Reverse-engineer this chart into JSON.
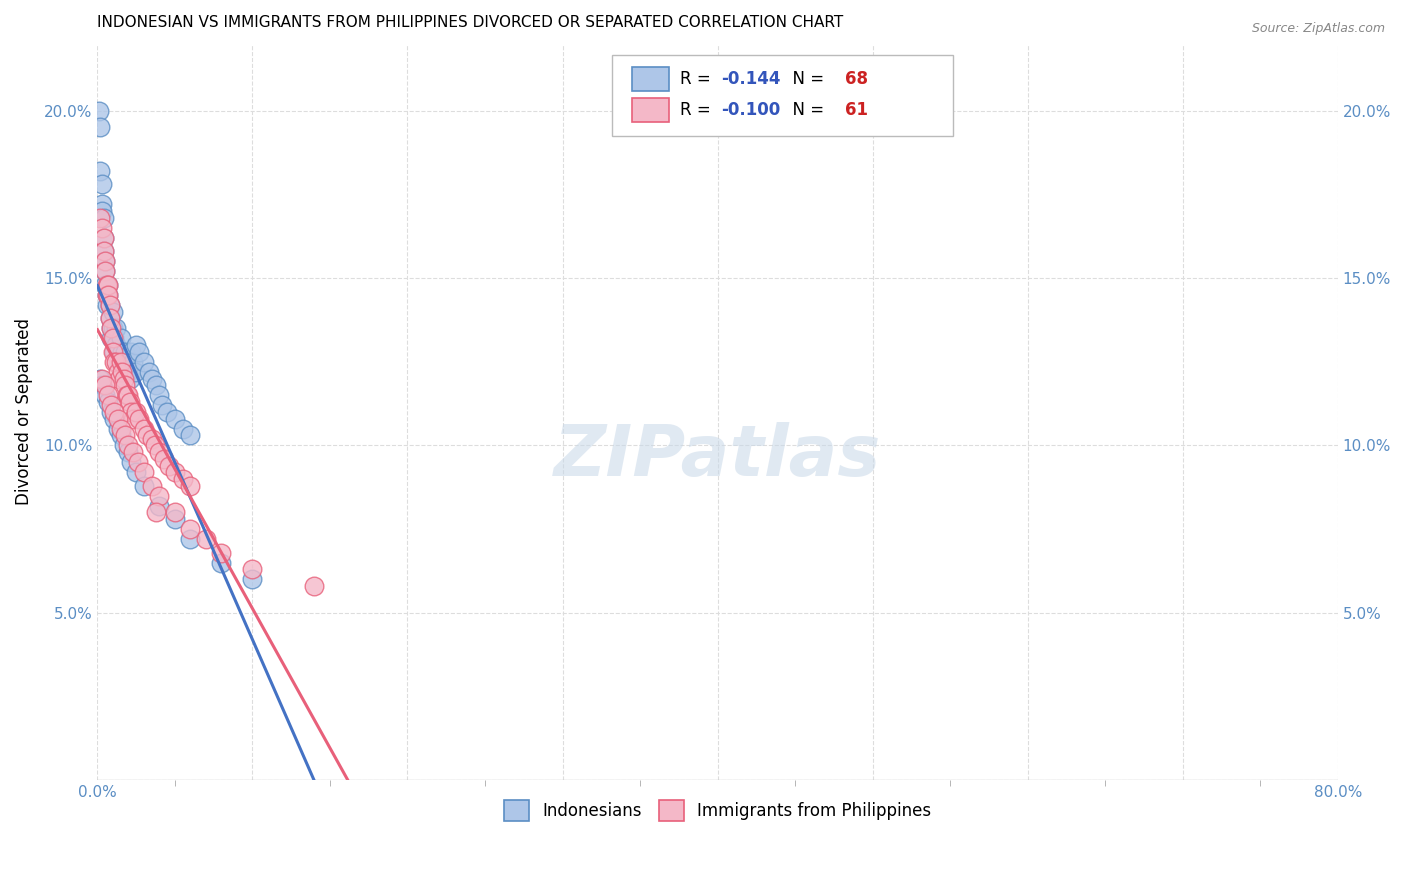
{
  "title": "INDONESIAN VS IMMIGRANTS FROM PHILIPPINES DIVORCED OR SEPARATED CORRELATION CHART",
  "source": "Source: ZipAtlas.com",
  "ylabel": "Divorced or Separated",
  "watermark": "ZIPatlas",
  "series": [
    {
      "name": "Indonesians",
      "color": "#aec6e8",
      "edge_color": "#5b8ec4",
      "R": -0.144,
      "N": 68,
      "trend_color": "#4472c4",
      "trend_style": "solid_then_dashed",
      "points_x": [
        0.001,
        0.002,
        0.002,
        0.003,
        0.003,
        0.003,
        0.004,
        0.004,
        0.004,
        0.005,
        0.005,
        0.005,
        0.006,
        0.006,
        0.007,
        0.007,
        0.008,
        0.008,
        0.009,
        0.009,
        0.01,
        0.01,
        0.011,
        0.011,
        0.012,
        0.012,
        0.013,
        0.014,
        0.015,
        0.016,
        0.017,
        0.018,
        0.019,
        0.02,
        0.021,
        0.022,
        0.023,
        0.024,
        0.025,
        0.027,
        0.03,
        0.033,
        0.035,
        0.038,
        0.04,
        0.042,
        0.045,
        0.05,
        0.055,
        0.06,
        0.002,
        0.003,
        0.005,
        0.007,
        0.009,
        0.011,
        0.013,
        0.015,
        0.017,
        0.02,
        0.022,
        0.025,
        0.03,
        0.04,
        0.05,
        0.06,
        0.08,
        0.1
      ],
      "points_y": [
        0.2,
        0.195,
        0.182,
        0.178,
        0.172,
        0.17,
        0.168,
        0.162,
        0.158,
        0.155,
        0.152,
        0.148,
        0.145,
        0.142,
        0.148,
        0.145,
        0.142,
        0.138,
        0.135,
        0.132,
        0.14,
        0.135,
        0.132,
        0.128,
        0.135,
        0.13,
        0.128,
        0.125,
        0.132,
        0.128,
        0.125,
        0.128,
        0.125,
        0.122,
        0.12,
        0.128,
        0.125,
        0.122,
        0.13,
        0.128,
        0.125,
        0.122,
        0.12,
        0.118,
        0.115,
        0.112,
        0.11,
        0.108,
        0.105,
        0.103,
        0.12,
        0.118,
        0.115,
        0.113,
        0.11,
        0.108,
        0.105,
        0.103,
        0.1,
        0.098,
        0.095,
        0.092,
        0.088,
        0.082,
        0.078,
        0.072,
        0.065,
        0.06
      ]
    },
    {
      "name": "Immigrants from Philippines",
      "color": "#f4b8c8",
      "edge_color": "#e8607a",
      "R": -0.1,
      "N": 61,
      "trend_color": "#e8607a",
      "trend_style": "solid",
      "points_x": [
        0.002,
        0.003,
        0.004,
        0.004,
        0.005,
        0.005,
        0.006,
        0.006,
        0.007,
        0.007,
        0.008,
        0.008,
        0.009,
        0.01,
        0.01,
        0.011,
        0.012,
        0.013,
        0.014,
        0.015,
        0.016,
        0.017,
        0.018,
        0.019,
        0.02,
        0.021,
        0.022,
        0.023,
        0.025,
        0.027,
        0.03,
        0.032,
        0.035,
        0.037,
        0.04,
        0.043,
        0.046,
        0.05,
        0.055,
        0.06,
        0.003,
        0.005,
        0.007,
        0.009,
        0.011,
        0.013,
        0.015,
        0.018,
        0.02,
        0.023,
        0.026,
        0.03,
        0.035,
        0.04,
        0.05,
        0.06,
        0.07,
        0.08,
        0.1,
        0.14,
        0.038
      ],
      "points_y": [
        0.168,
        0.165,
        0.162,
        0.158,
        0.155,
        0.152,
        0.148,
        0.145,
        0.148,
        0.145,
        0.142,
        0.138,
        0.135,
        0.132,
        0.128,
        0.125,
        0.125,
        0.122,
        0.12,
        0.125,
        0.122,
        0.12,
        0.118,
        0.115,
        0.115,
        0.113,
        0.11,
        0.108,
        0.11,
        0.108,
        0.105,
        0.103,
        0.102,
        0.1,
        0.098,
        0.096,
        0.094,
        0.092,
        0.09,
        0.088,
        0.12,
        0.118,
        0.115,
        0.112,
        0.11,
        0.108,
        0.105,
        0.103,
        0.1,
        0.098,
        0.095,
        0.092,
        0.088,
        0.085,
        0.08,
        0.075,
        0.072,
        0.068,
        0.063,
        0.058,
        0.08
      ]
    }
  ],
  "xlim": [
    0.0,
    0.8
  ],
  "ylim": [
    0.0,
    0.22
  ],
  "yticks": [
    0.0,
    0.05,
    0.1,
    0.15,
    0.2
  ],
  "ytick_labels_left": [
    "",
    "5.0%",
    "10.0%",
    "15.0%",
    "20.0%"
  ],
  "ytick_labels_right": [
    "",
    "5.0%",
    "10.0%",
    "15.0%",
    "20.0%"
  ],
  "xticks": [
    0.0,
    0.1,
    0.2,
    0.3,
    0.4,
    0.5,
    0.6,
    0.7,
    0.8
  ],
  "xtick_labels": [
    "0.0%",
    "",
    "",
    "",
    "",
    "",
    "",
    "",
    "80.0%"
  ],
  "x_minor_ticks": [
    0.05,
    0.15,
    0.25,
    0.35,
    0.45,
    0.55,
    0.65,
    0.75
  ],
  "background_color": "#ffffff",
  "grid_color": "#dddddd",
  "title_fontsize": 11,
  "tick_label_color": "#5b8ec4",
  "trend_solid_end": 0.3,
  "legend_R_color": "#3355bb",
  "legend_N_color": "#cc2222"
}
